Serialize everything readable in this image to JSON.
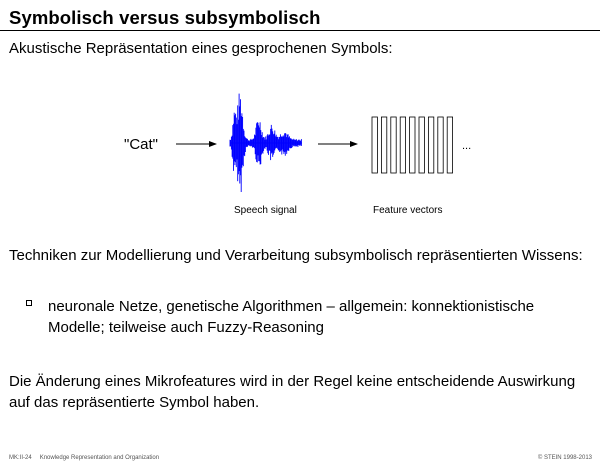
{
  "title": "Symbolisch versus subsymbolisch",
  "subtitle": "Akustische Repräsentation eines gesprochenen Symbols:",
  "figure": {
    "word_label": "\"Cat\"",
    "speech_caption": "Speech signal",
    "feature_caption": "Feature vectors",
    "ellipsis": "...",
    "waveform_color": "#0000ff",
    "feature_vector_count": 9
  },
  "paragraph1": "Techniken zur Modellierung und Verarbeitung subsymbolisch repräsentierten Wissens:",
  "bullet1": "neuronale Netze, genetische Algorithmen – allgemein: konnektionistische Modelle; teilweise auch Fuzzy-Reasoning",
  "paragraph2": "Die Änderung eines Mikrofeatures wird in der Regel keine entscheidende Auswirkung auf das repräsentierte Symbol haben.",
  "footer": {
    "page": "MK:II-24",
    "course": "Knowledge Representation and Organization",
    "copyright": "© STEIN 1998-2013"
  }
}
